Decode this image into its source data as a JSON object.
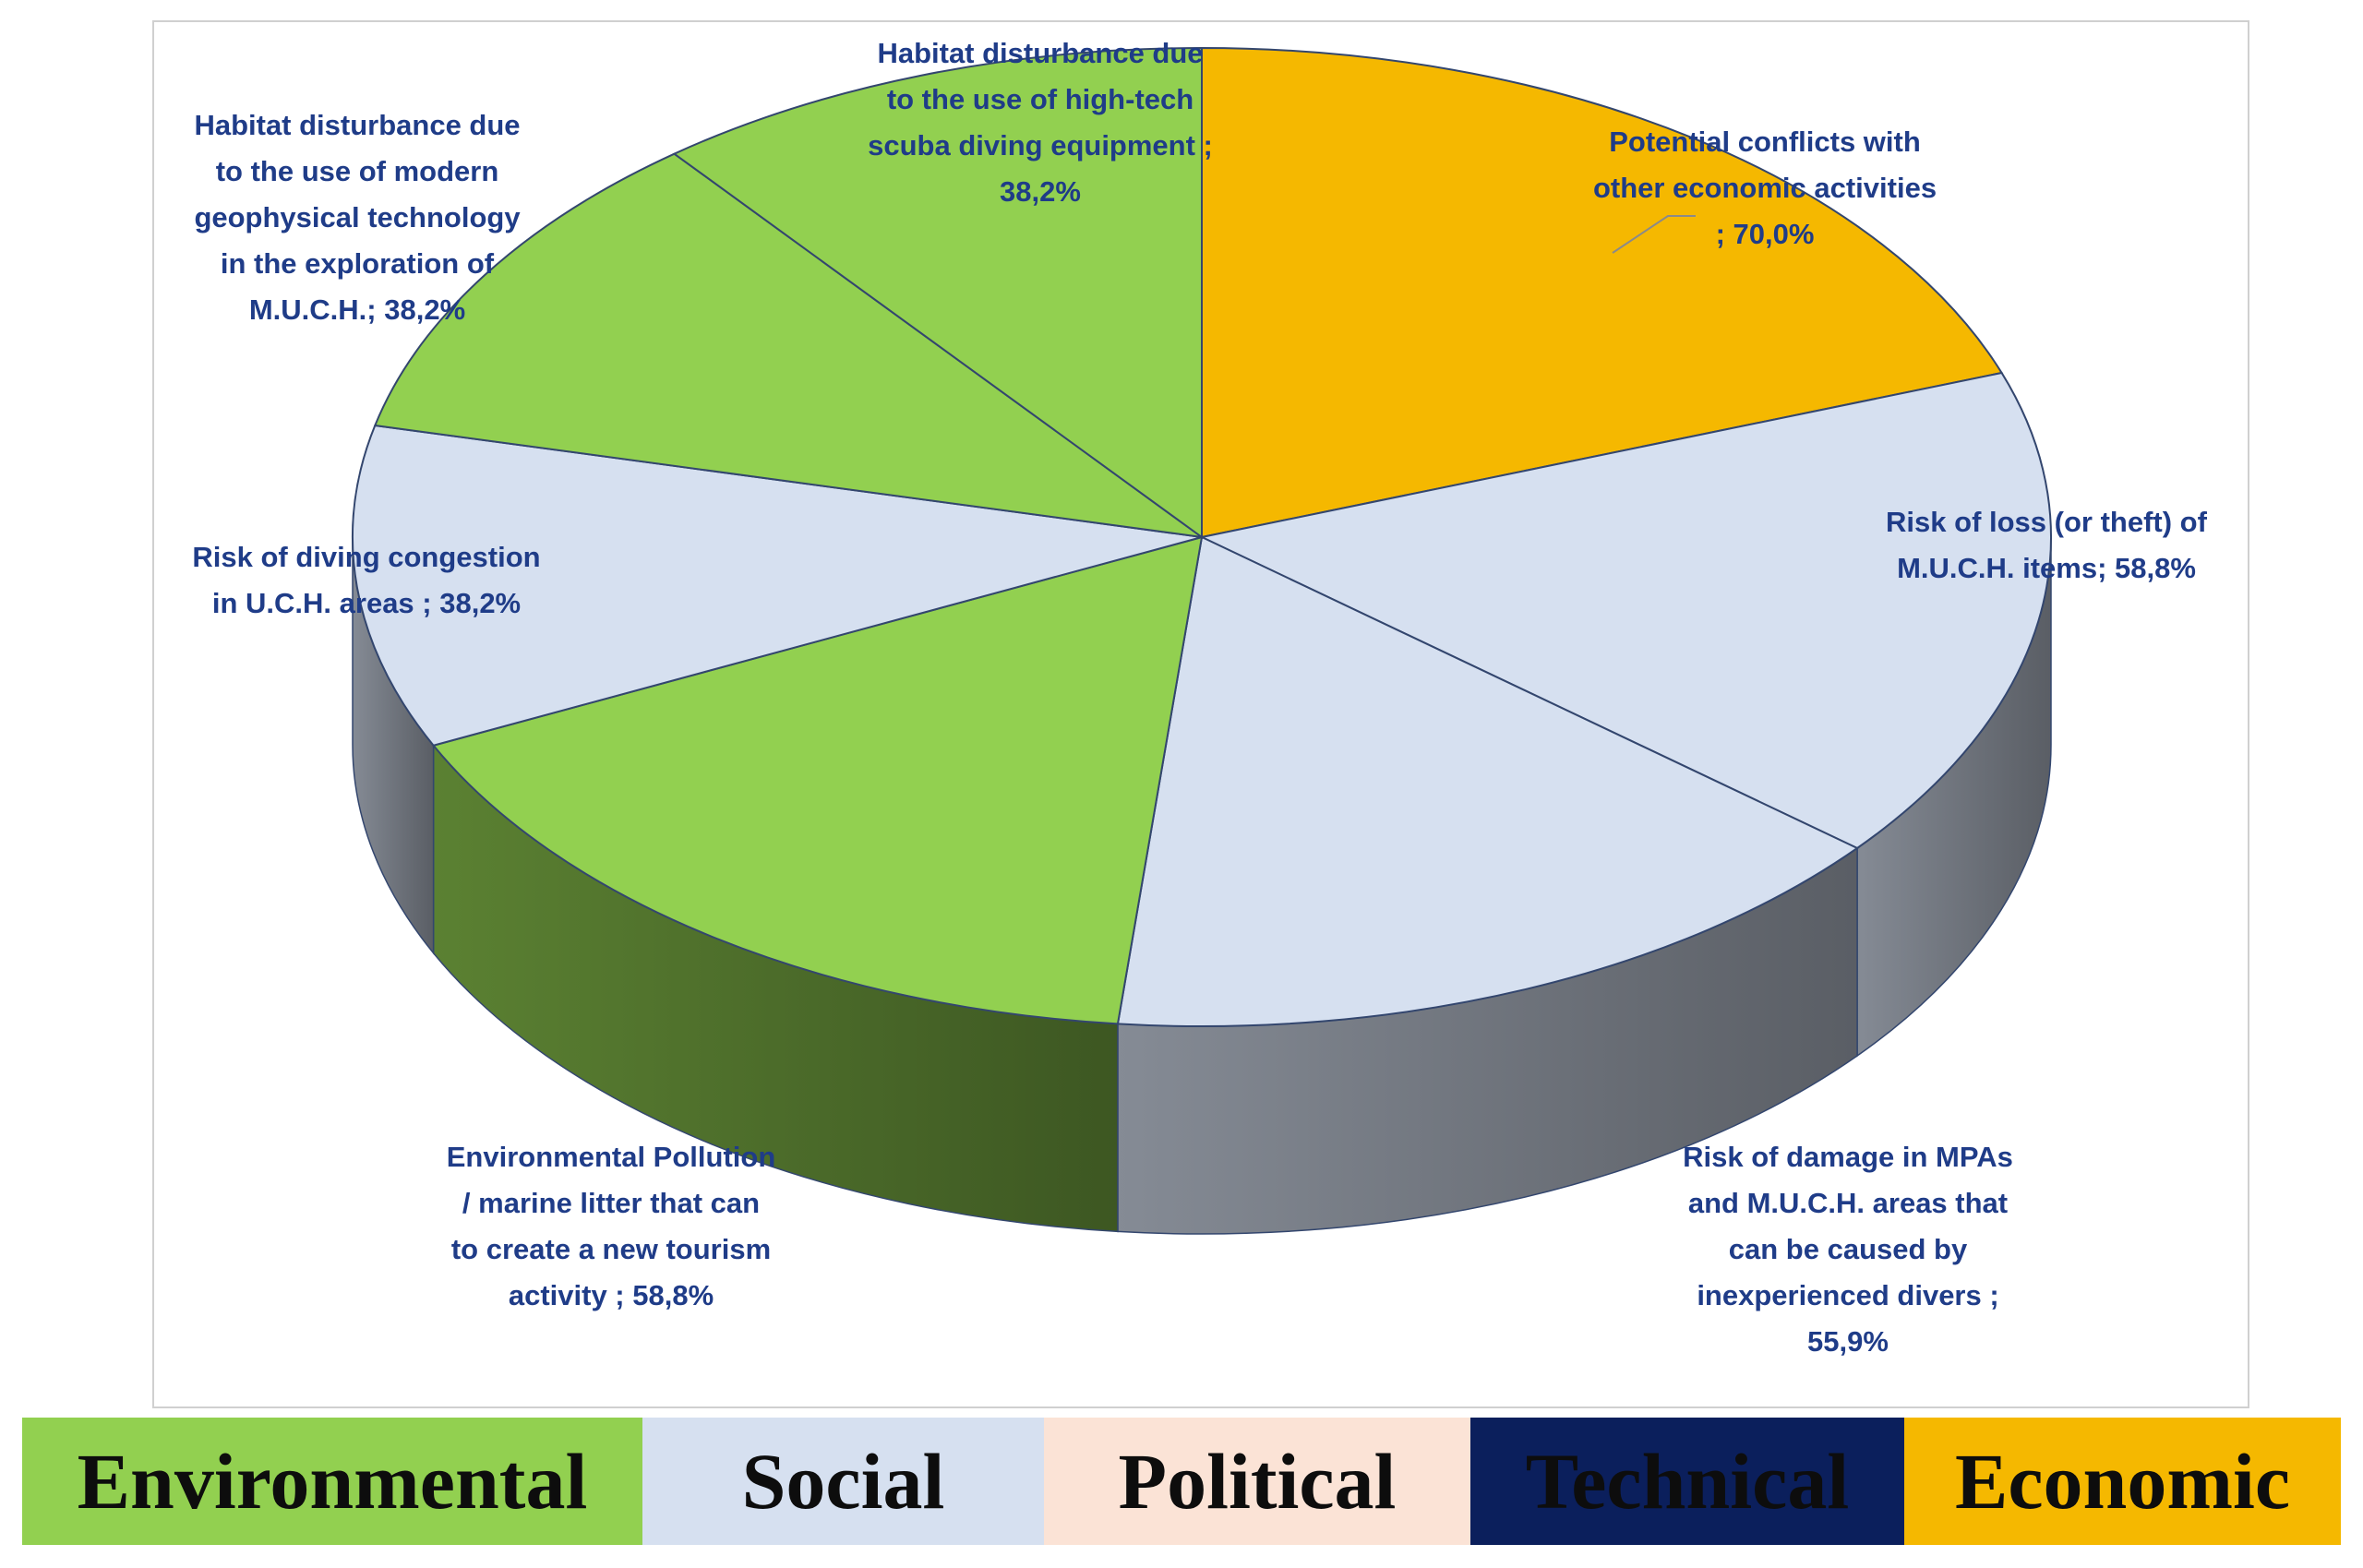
{
  "chart_data": {
    "type": "pie",
    "title": "",
    "slices": [
      {
        "label": "Potential conflicts with other economic activities ; 70,0%",
        "value": 70.0,
        "category": "Economic",
        "color": "#f5b800"
      },
      {
        "label": "Risk of loss (or theft) of M.U.C.H. items; 58,8%",
        "value": 58.8,
        "category": "Social",
        "color": "#d6e0f0"
      },
      {
        "label": "Risk of damage in MPAs and M.U.C.H. areas that can be caused by inexperienced divers ; 55,9%",
        "value": 55.9,
        "category": "Social",
        "color": "#d6e0f0"
      },
      {
        "label": "Environmental Pollution / marine litter that can to create a new tourism activity ; 58,8%",
        "value": 58.8,
        "category": "Environmental",
        "color": "#92d050"
      },
      {
        "label": "Risk of diving congestion in U.C.H. areas ; 38,2%",
        "value": 38.2,
        "category": "Social",
        "color": "#d6e0f0"
      },
      {
        "label": "Habitat disturbance due to the use of modern geophysical technology in the exploration of M.U.C.H.; 38,2%",
        "value": 38.2,
        "category": "Environmental",
        "color": "#92d050"
      },
      {
        "label": "Habitat disturbance due to the use of high-tech scuba diving equipment ; 38,2%",
        "value": 38.2,
        "category": "Environmental",
        "color": "#92d050"
      }
    ],
    "label_lines": [
      [
        "Potential conflicts with",
        "other economic activities",
        "; 70,0%"
      ],
      [
        "Risk of loss (or theft) of",
        "M.U.C.H. items; 58,8%"
      ],
      [
        "Risk of damage in MPAs",
        "and M.U.C.H. areas that",
        "can be caused by",
        "inexperienced divers ;",
        "55,9%"
      ],
      [
        "Environmental Pollution",
        "/ marine litter that can",
        "to create a new tourism",
        "activity ; 58,8%"
      ],
      [
        "Risk of diving congestion",
        "in U.C.H. areas ; 38,2%"
      ],
      [
        "Habitat disturbance due",
        "to the use of modern",
        "geophysical technology",
        "in the exploration of",
        "M.U.C.H.; 38,2%"
      ],
      [
        "Habitat disturbance due",
        "to the use of high-tech",
        "scuba diving equipment ;",
        "38,2%"
      ]
    ],
    "style": "3d-pie",
    "legend_placement": "bottom"
  },
  "legend": [
    {
      "label": "Environmental",
      "color": "#92d050",
      "text_color": "#0d0d0d"
    },
    {
      "label": "Social",
      "color": "#d6e0f0",
      "text_color": "#0d0d0d"
    },
    {
      "label": "Political",
      "color": "#fbe3d6",
      "text_color": "#0d0d0d"
    },
    {
      "label": "Technical",
      "color": "#0b1f5c",
      "text_color": "#0d0d0d"
    },
    {
      "label": "Economic",
      "color": "#f5b800",
      "text_color": "#0d0d0d"
    }
  ]
}
